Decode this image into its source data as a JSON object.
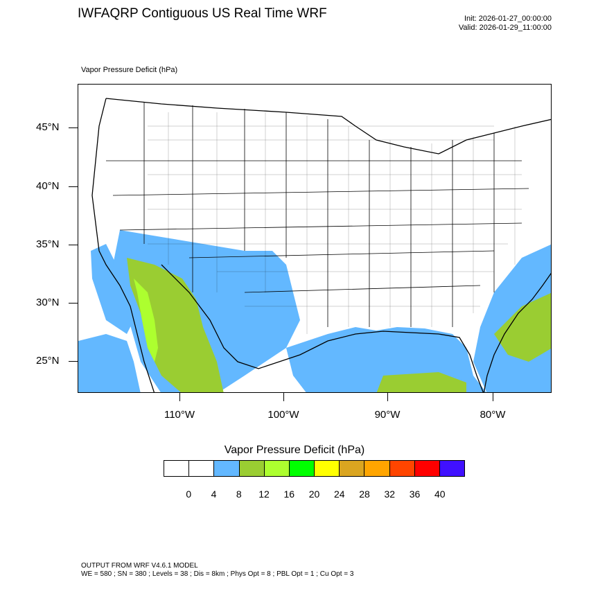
{
  "header": {
    "title": "IWFAQRP Contiguous US Real Time WRF",
    "init": "Init: 2026-01-27_00:00:00",
    "valid": "Valid: 2026-01-29_11:00:00"
  },
  "map": {
    "field_label": "Vapor Pressure Deficit   (hPa)",
    "lat_labels": [
      "45°N",
      "40°N",
      "35°N",
      "30°N",
      "25°N"
    ],
    "lon_labels": [
      "110°W",
      "100°W",
      "90°W",
      "80°W"
    ]
  },
  "colorbar": {
    "title": "Vapor Pressure Deficit  (hPa)",
    "colors": [
      "#ffffff",
      "#ffffff",
      "#63b8ff",
      "#9acd32",
      "#adff2f",
      "#00ff00",
      "#ffff00",
      "#daa520",
      "#ffa500",
      "#ff4500",
      "#ff0000",
      "#4010ff"
    ],
    "labels": [
      "0",
      "4",
      "8",
      "12",
      "16",
      "20",
      "24",
      "28",
      "32",
      "36",
      "40"
    ]
  },
  "footer": {
    "line1": "OUTPUT FROM WRF V4.6.1 MODEL",
    "line2": "WE = 580 ; SN = 380 ; Levels = 38 ; Dis = 8km ; Phys Opt = 8 ; PBL Opt = 1 ; Cu Opt = 3"
  }
}
